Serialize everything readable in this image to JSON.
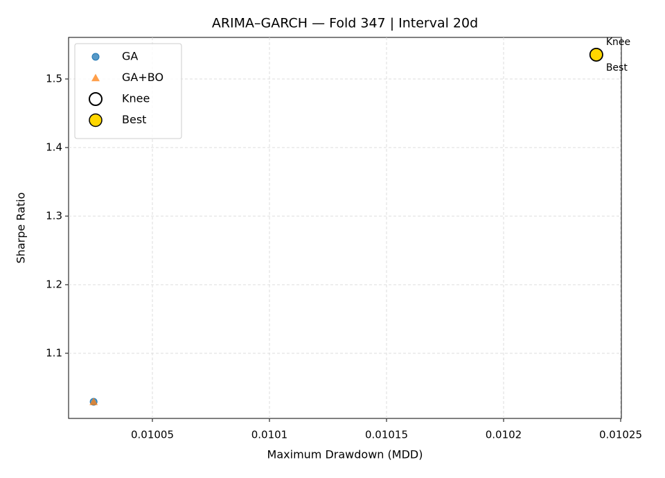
{
  "chart_data": {
    "type": "scatter",
    "title": "ARIMA–GARCH — Fold 347 | Interval 20d",
    "x_label": "Maximum Drawdown (MDD)",
    "y_label": "Sharpe Ratio",
    "xlim": [
      0.0100142,
      0.0102503
    ],
    "ylim": [
      1.005,
      1.5606
    ],
    "xticks": [
      0.01005,
      0.0101,
      0.01015,
      0.0102,
      0.01025
    ],
    "yticks": [
      1.1,
      1.2,
      1.3,
      1.4,
      1.5
    ],
    "grid": true,
    "legend": "upper left",
    "series": [
      {
        "name": "GA",
        "color": "#1f77b4",
        "marker": "circle",
        "x": [
          0.0100249
        ],
        "values": [
          1.0293
        ]
      },
      {
        "name": "GA+BO",
        "color": "#ff7f0e",
        "marker": "triangle",
        "x": [
          0.0100249
        ],
        "values": [
          1.0293
        ]
      },
      {
        "name": "Knee",
        "color": "none",
        "marker": "ring",
        "annotate": "above",
        "x": [
          0.0102396
        ],
        "values": [
          1.5354
        ]
      },
      {
        "name": "Best",
        "color": "#ffd700",
        "marker": "big-circle",
        "annotate": "below",
        "x": [
          0.0102396
        ],
        "values": [
          1.5354
        ]
      }
    ]
  }
}
